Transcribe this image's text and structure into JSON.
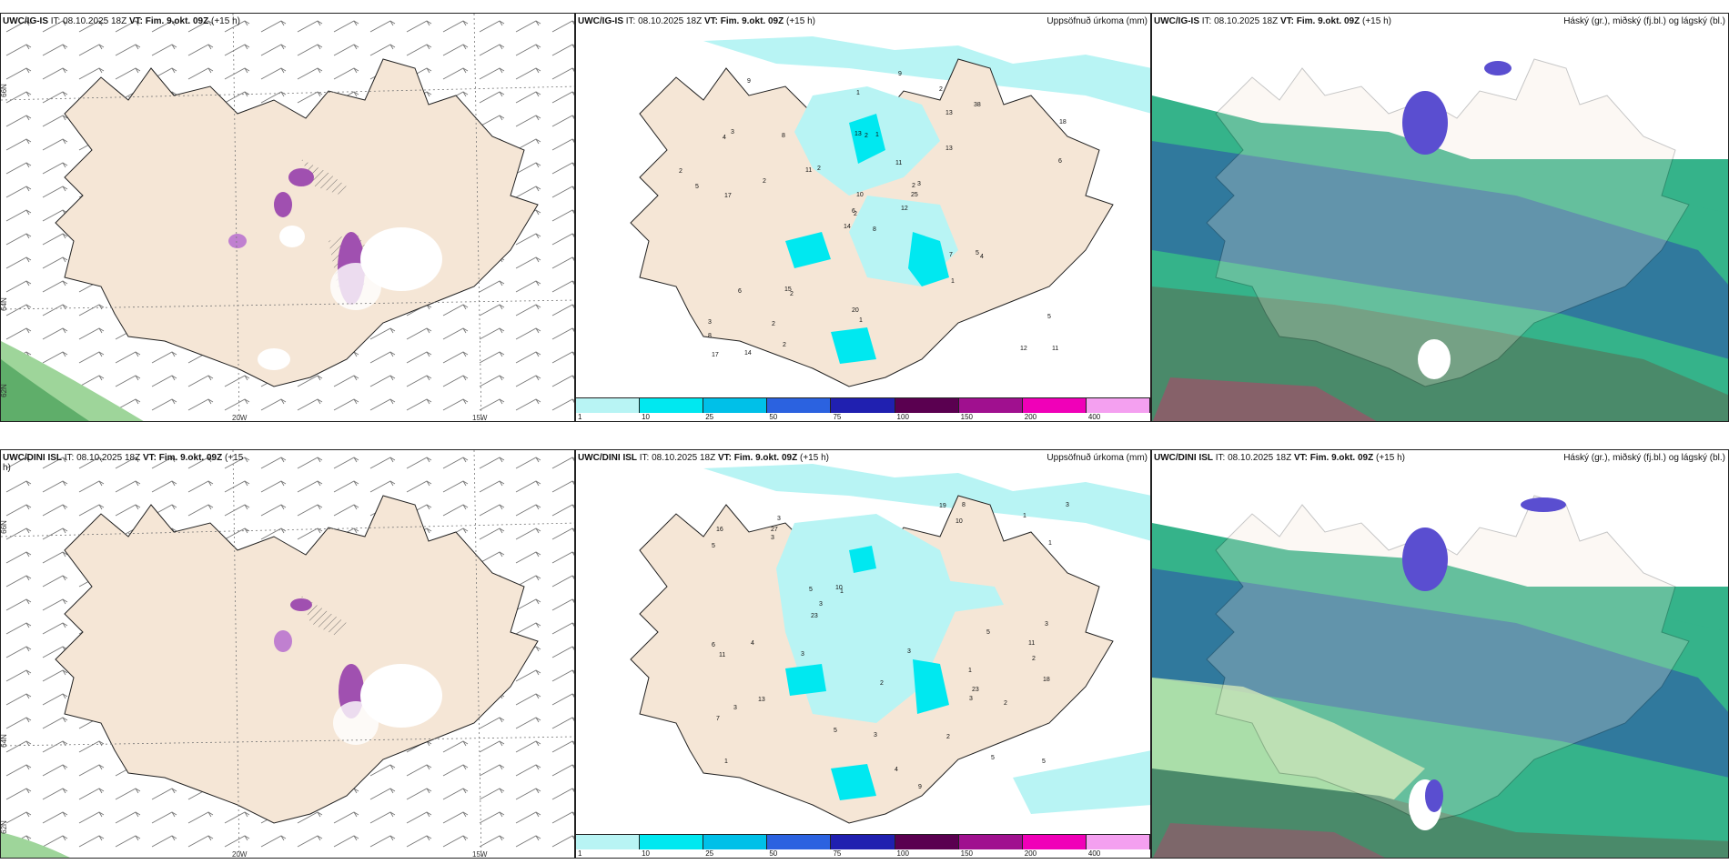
{
  "panels": {
    "p1": {
      "model": "UWC/IG-IS",
      "it": "IT: 08.10.2025 18Z",
      "vt": "VT: Fim. 9.okt. 09Z",
      "lead": "(+15 h)",
      "right_title": ""
    },
    "p2": {
      "model": "UWC/IG-IS",
      "it": "IT: 08.10.2025 18Z",
      "vt": "VT: Fim. 9.okt. 09Z",
      "lead": "(+15 h)",
      "right_title": "Uppsöfnuð úrkoma (mm)"
    },
    "p3": {
      "model": "UWC/IG-IS",
      "it": "IT: 08.10.2025 18Z",
      "vt": "VT: Fim. 9.okt. 09Z",
      "lead": "(+15 h)",
      "right_title": "Háský (gr.), miðský (fj.bl.) og lágský (bl.)"
    },
    "p4": {
      "model": "UWC/DINI ISL",
      "it": "IT: 08.10.2025 18Z",
      "vt": "VT: Fim. 9.okt. 09Z",
      "lead": "(+15",
      "lead2": "h)",
      "right_title": ""
    },
    "p5": {
      "model": "UWC/DINI ISL",
      "it": "IT: 08.10.2025 18Z",
      "vt": "VT: Fim. 9.okt. 09Z",
      "lead": "(+15 h)",
      "right_title": "Uppsöfnuð úrkoma (mm)"
    },
    "p6": {
      "model": "UWC/DINI ISL",
      "it": "IT: 08.10.2025 18Z",
      "vt": "VT: Fim. 9.okt. 09Z",
      "lead": "(+15 h)",
      "right_title": "Háský (gr.), miðský (fj.bl.) og lágský (bl.)"
    }
  },
  "coords": {
    "lon20": "20W",
    "lon15": "15W",
    "lat66": "66N",
    "lat64": "64N",
    "lat62": "62N"
  },
  "precip_legend": {
    "colors": [
      "#b8f4f4",
      "#00e8f0",
      "#00c0e8",
      "#2b62e0",
      "#2020b0",
      "#5a0050",
      "#a0108f",
      "#f000b8",
      "#f4a0f0"
    ],
    "ticks": [
      "1",
      "10",
      "25",
      "50",
      "75",
      "100",
      "150",
      "200",
      "400"
    ]
  },
  "precip_values_top": [
    "8",
    "4",
    "2",
    "3",
    "2",
    "2",
    "2",
    "1",
    "13",
    "12",
    "9",
    "11",
    "17",
    "18",
    "14",
    "13",
    "14",
    "13",
    "11",
    "6",
    "2",
    "8",
    "2",
    "2",
    "3",
    "4",
    "3",
    "1",
    "5",
    "7",
    "6",
    "6",
    "20",
    "10",
    "8",
    "38",
    "15",
    "12",
    "5",
    "5",
    "9",
    "11",
    "2",
    "1",
    "2",
    "2",
    "25",
    "17",
    "1"
  ],
  "precip_values_bottom": [
    "1",
    "2",
    "1",
    "3",
    "1",
    "5",
    "7",
    "10",
    "5",
    "9",
    "5",
    "6",
    "16",
    "5",
    "5",
    "3",
    "2",
    "3",
    "10",
    "13",
    "3",
    "1",
    "23",
    "18",
    "19",
    "27",
    "23",
    "11",
    "3",
    "5",
    "4",
    "2",
    "3",
    "3",
    "11",
    "2",
    "3",
    "4",
    "3",
    "3",
    "1",
    "8"
  ],
  "colors": {
    "land": "#f5e6d6",
    "sea_cyan": "#b8f4f4",
    "cloud_green": "#35b38a",
    "cloud_blue": "#2f6ea0",
    "cloud_purple": "#5a4ed0",
    "wind_purple": "#b060c0"
  }
}
